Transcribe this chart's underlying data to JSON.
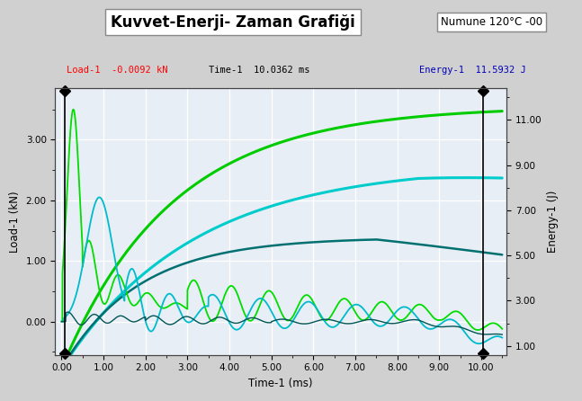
{
  "title": "Kuvvet-Enerji- Zaman Grafiği",
  "subtitle": "Numune 120°C -00",
  "xlabel": "Time-1 (ms)",
  "ylabel_left": "Load-1 (kN)",
  "ylabel_right": "Energy-1 (J)",
  "annotation_load": "Load-1  -0.0092 kN",
  "annotation_time": "Time-1  10.0362 ms",
  "annotation_energy": "Energy-1  11.5932 J",
  "xlim": [
    -0.15,
    10.6
  ],
  "ylim_left": [
    -0.55,
    3.85
  ],
  "ylim_right": [
    0.6,
    12.4
  ],
  "xticks": [
    0.0,
    1.0,
    2.0,
    3.0,
    4.0,
    5.0,
    6.0,
    7.0,
    8.0,
    9.0,
    10.0
  ],
  "yticks_left": [
    0.0,
    1.0,
    2.0,
    3.0
  ],
  "yticks_right": [
    1.0,
    3.0,
    5.0,
    7.0,
    9.0,
    11.0
  ],
  "bg_color": "#d0d0d0",
  "plot_bg_color": "#e8eef5",
  "grid_color": "#ffffff",
  "color_green": "#00cc00",
  "color_cyan": "#00cccc",
  "color_darkteal": "#007070",
  "color_green_osc": "#00dd00",
  "color_cyan_osc": "#00bbcc",
  "color_darkteal_osc": "#005555"
}
